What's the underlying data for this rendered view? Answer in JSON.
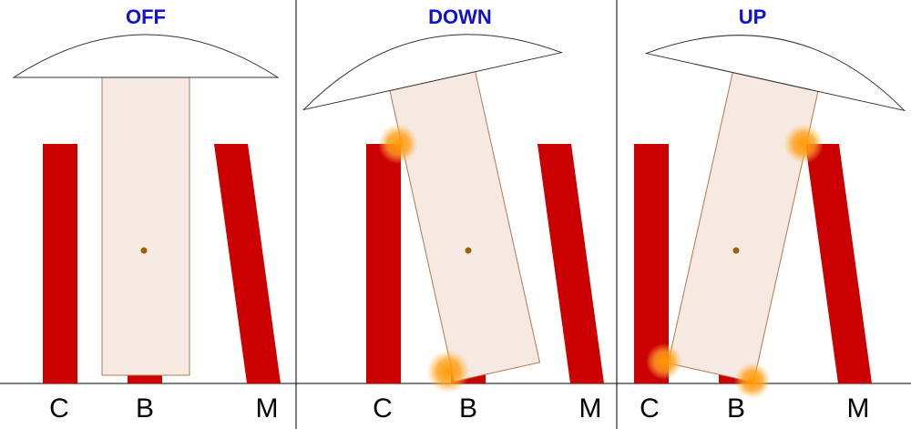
{
  "panels": [
    {
      "title": "OFF",
      "labels": [
        "C",
        "B",
        "M"
      ]
    },
    {
      "title": "DOWN",
      "labels": [
        "C",
        "B",
        "M"
      ]
    },
    {
      "title": "UP",
      "labels": [
        "C",
        "B",
        "M"
      ]
    }
  ]
}
